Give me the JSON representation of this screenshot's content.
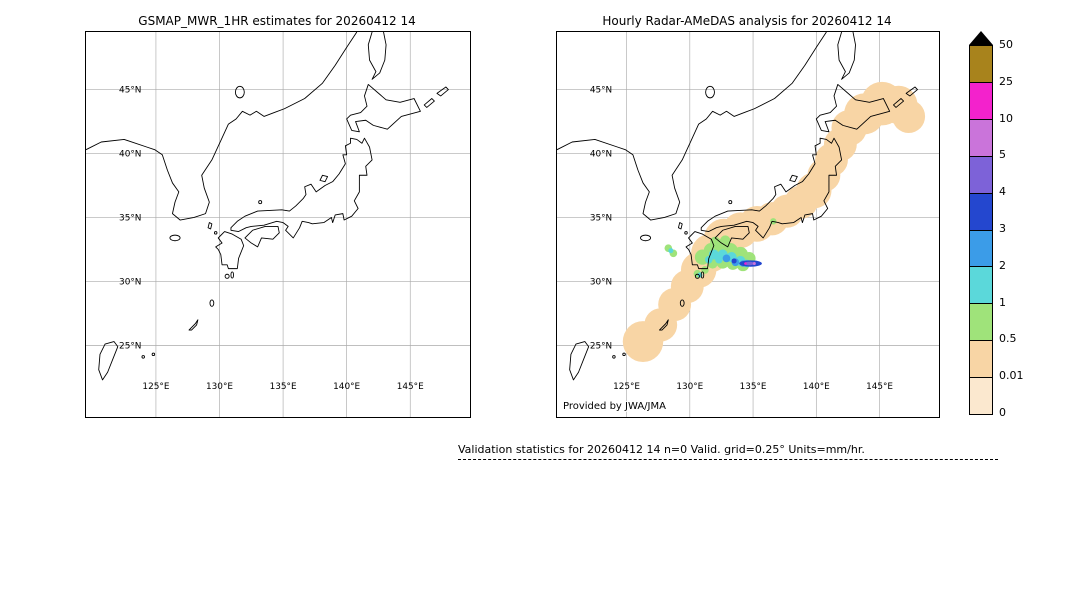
{
  "left_panel": {
    "title": "GSMAP_MWR_1HR estimates for 20260412 14"
  },
  "right_panel": {
    "title": "Hourly Radar-AMeDAS analysis for 20260412 14",
    "credit": "Provided by JWA/JMA"
  },
  "footer": {
    "validation_text": "Validation statistics for 20260412 14  n=0 Valid. grid=0.25° Units=mm/hr."
  },
  "map": {
    "lat_labels": [
      "45°N",
      "40°N",
      "35°N",
      "30°N",
      "25°N"
    ],
    "lon_labels": [
      "125°E",
      "130°E",
      "135°E",
      "140°E",
      "145°E"
    ]
  },
  "colorbar": {
    "overflow_marker_color": "#000000",
    "tick_labels": [
      "50",
      "25",
      "10",
      "5",
      "4",
      "3",
      "2",
      "1",
      "0.5",
      "0.01",
      "0"
    ],
    "segment_colors_top_to_bottom": [
      "#a8831c",
      "#f322cc",
      "#ca74da",
      "#7d62d8",
      "#2447cf",
      "#3b9ce8",
      "#5bd8da",
      "#9fe37a",
      "#f8d5a5",
      "#fbe8cf"
    ]
  },
  "precipitation": {
    "levels": [
      {
        "range": "0.01-0.5",
        "color": "#f8d5a5",
        "circles": [
          [
            68,
            242,
            16
          ],
          [
            82,
            229,
            13
          ],
          [
            93,
            213,
            13
          ],
          [
            103,
            199,
            13
          ],
          [
            112,
            186,
            14
          ],
          [
            121,
            173,
            15
          ],
          [
            132,
            162,
            16
          ],
          [
            145,
            155,
            14
          ],
          [
            158,
            150,
            14
          ],
          [
            170,
            146,
            13
          ],
          [
            182,
            140,
            13
          ],
          [
            193,
            133,
            13
          ],
          [
            203,
            124,
            14
          ],
          [
            211,
            112,
            13
          ],
          [
            217,
            100,
            13
          ],
          [
            224,
            88,
            13
          ],
          [
            231,
            75,
            14
          ],
          [
            243,
            64,
            16
          ],
          [
            257,
            56,
            17
          ],
          [
            270,
            57,
            15
          ],
          [
            278,
            66,
            13
          ]
        ],
        "ellipses": []
      },
      {
        "range": "0.5-1",
        "color": "#9fe37a",
        "circles": [
          [
            115,
            176,
            6
          ],
          [
            122,
            171,
            6
          ],
          [
            129,
            169,
            7
          ],
          [
            137,
            171,
            6
          ],
          [
            145,
            174,
            6
          ],
          [
            152,
            177,
            5
          ],
          [
            147,
            182,
            5
          ],
          [
            139,
            181,
            5
          ],
          [
            131,
            180,
            5
          ],
          [
            123,
            181,
            4
          ],
          [
            125,
            164,
            4
          ],
          [
            133,
            163,
            4
          ],
          [
            117,
            186,
            3
          ],
          [
            111,
            189,
            3
          ],
          [
            88,
            169,
            3
          ],
          [
            92,
            173,
            3
          ],
          [
            171,
            148,
            2.5
          ]
        ],
        "ellipses": []
      },
      {
        "range": "1-2",
        "color": "#5bd8da",
        "circles": [
          [
            124,
            174,
            4
          ],
          [
            131,
            174,
            4
          ],
          [
            138,
            176,
            4
          ],
          [
            145,
            179,
            4
          ],
          [
            150,
            181,
            3
          ],
          [
            128,
            178,
            3
          ],
          [
            120,
            178,
            3
          ],
          [
            113,
            190,
            2
          ],
          [
            90,
            171,
            2
          ]
        ],
        "ellipses": []
      },
      {
        "range": "2-3",
        "color": "#3b9ce8",
        "circles": [
          [
            134,
            177,
            3
          ],
          [
            141,
            180,
            3
          ],
          [
            147,
            181,
            2.5
          ]
        ],
        "ellipses": []
      },
      {
        "range": "3-4",
        "color": "#2447cf",
        "circles": [
          [
            140,
            179,
            2
          ]
        ],
        "ellipses": [
          [
            153,
            181,
            9,
            2.5
          ]
        ]
      },
      {
        "range": "4-5",
        "color": "#7e63d6",
        "circles": [],
        "ellipses": [
          [
            152,
            181,
            4,
            1.4
          ]
        ]
      },
      {
        "range": "5-10",
        "color": "#ca74da",
        "circles": [
          [
            156,
            181,
            1.2
          ]
        ],
        "ellipses": []
      },
      {
        "range": "10-25",
        "color": "#f322cc",
        "circles": [
          [
            149,
            181,
            1
          ]
        ],
        "ellipses": []
      }
    ]
  }
}
